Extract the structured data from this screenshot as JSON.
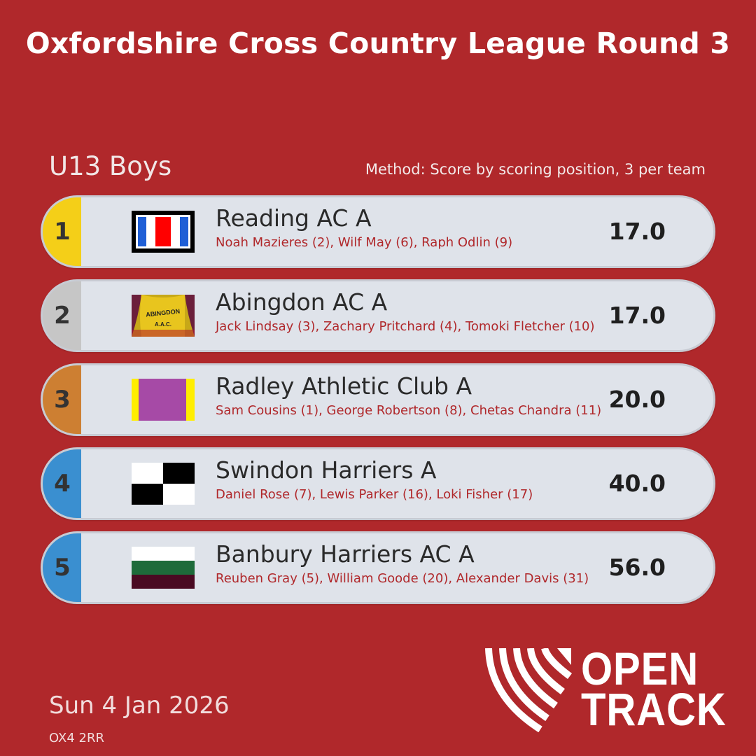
{
  "title": "Oxfordshire Cross Country League Round 3",
  "category": "U13 Boys",
  "method": "Method: Score by scoring position, 3 per team",
  "colors": {
    "background": "#b0282b",
    "gold": "#f4cf18",
    "silver": "#c6c6c6",
    "bronze": "#cd7f32",
    "other": "#3a8fd0",
    "card": "#dfe3ea",
    "members_text": "#b0282b"
  },
  "results": [
    {
      "rank": "1",
      "team": "Reading AC A",
      "members": "Noah Mazieres (2), Wilf May (6), Raph Odlin (9)",
      "score": "17.0",
      "medal": "gold",
      "flag": "reading-ac-flag"
    },
    {
      "rank": "2",
      "team": "Abingdon AC A",
      "members": "Jack Lindsay (3), Zachary Pritchard (4), Tomoki Fletcher (10)",
      "score": "17.0",
      "medal": "silver",
      "flag": "abingdon-vest-image"
    },
    {
      "rank": "3",
      "team": "Radley Athletic Club A",
      "members": "Sam Cousins (1), George Robertson (8), Chetas Chandra (11)",
      "score": "20.0",
      "medal": "bronze",
      "flag": "radley-flag"
    },
    {
      "rank": "4",
      "team": "Swindon Harriers A",
      "members": "Daniel Rose (7), Lewis Parker (16), Loki Fisher (17)",
      "score": "40.0",
      "medal": "other",
      "flag": "swindon-chequered-flag"
    },
    {
      "rank": "5",
      "team": "Banbury Harriers AC A",
      "members": "Reuben Gray (5), William Goode (20), Alexander Davis (31)",
      "score": "56.0",
      "medal": "other",
      "flag": "banbury-tricolour-flag"
    }
  ],
  "date": "Sun 4 Jan 2026",
  "postcode": "OX4 2RR",
  "logo": {
    "line1": "OPEN",
    "line2": "TRACK",
    "icon": "opentrack-logo-icon"
  }
}
